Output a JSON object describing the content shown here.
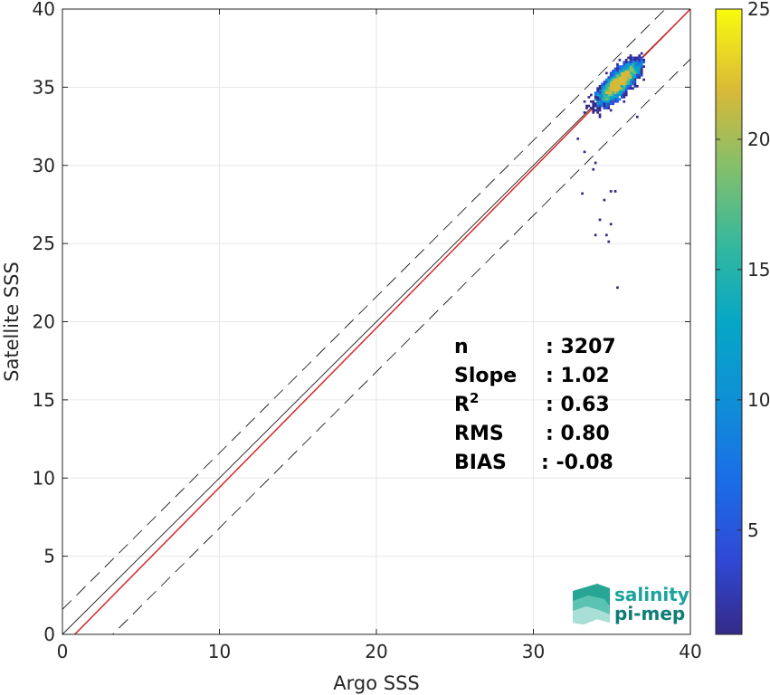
{
  "chart_data": {
    "type": "heatmap-scatter",
    "xlabel": "Argo SSS",
    "ylabel": "Satellite SSS",
    "xlim": [
      0,
      40
    ],
    "ylim": [
      0,
      40
    ],
    "xticks": [
      0,
      10,
      20,
      30,
      40
    ],
    "yticks": [
      0,
      5,
      10,
      15,
      20,
      25,
      30,
      35,
      40
    ],
    "grid": true,
    "lines": {
      "identity": {
        "slope": 1,
        "intercept": 0,
        "color": "#000000"
      },
      "regression": {
        "slope": 1.02,
        "intercept": -0.8,
        "color": "#d62728"
      },
      "bounds": [
        {
          "slope": 1,
          "intercept": 1.6,
          "dash": true
        },
        {
          "slope": 1,
          "intercept": -3.2,
          "dash": true
        }
      ]
    },
    "cluster": {
      "center": [
        35.3,
        35.3
      ],
      "x_range": [
        31.5,
        37.0
      ],
      "y_range": [
        31.5,
        37.2
      ]
    },
    "outliers": [
      [
        33.2,
        30.9
      ],
      [
        33.8,
        29.7
      ],
      [
        34.5,
        27.8
      ],
      [
        34.9,
        28.3
      ],
      [
        35.2,
        28.4
      ],
      [
        34.3,
        26.5
      ],
      [
        35.0,
        26.2
      ],
      [
        34.6,
        25.6
      ],
      [
        33.9,
        25.5
      ],
      [
        34.8,
        25.2
      ],
      [
        35.4,
        22.2
      ],
      [
        33.1,
        28.2
      ],
      [
        32.8,
        31.7
      ],
      [
        36.6,
        33.1
      ],
      [
        34.0,
        30.2
      ]
    ],
    "colorbar": {
      "min": 1,
      "max": 25,
      "ticks": [
        5,
        10,
        15,
        20,
        25
      ],
      "colormap": "parula"
    },
    "stats": [
      {
        "label": "n",
        "value": ": 3207"
      },
      {
        "label": "Slope",
        "value": ": 1.02"
      },
      {
        "label": "R",
        "sup": "2",
        "value": ": 0.63"
      },
      {
        "label": "RMS",
        "value": ": 0.80"
      },
      {
        "label": "BIAS",
        "value": ": -0.08"
      }
    ]
  },
  "logo": {
    "line1": "salinity",
    "line2": "pi-mep",
    "icon": "salinity-waves-icon",
    "color": "#1aa39a"
  }
}
